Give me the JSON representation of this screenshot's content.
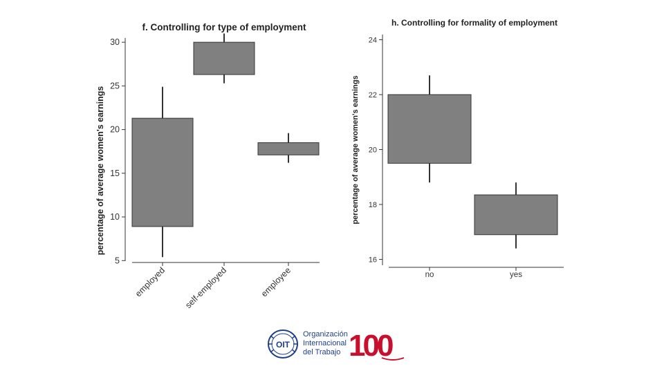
{
  "chart_data": [
    {
      "type": "boxplot",
      "title": "f. Controlling for type of employment",
      "xlabel": "",
      "ylabel": "percentage of average women's earnings",
      "ylim": [
        4.5,
        31
      ],
      "yticks": [
        5,
        10,
        15,
        20,
        25,
        30
      ],
      "ytick_labels": [
        "5",
        "10",
        "15",
        "20",
        "25",
        "30"
      ],
      "categories": [
        "employed",
        "self-employed",
        "employee"
      ],
      "boxes": [
        {
          "category": "employed",
          "whisker_low": 5.4,
          "q1": 8.9,
          "q3": 21.3,
          "whisker_high": 24.9
        },
        {
          "category": "self-employed",
          "whisker_low": 25.3,
          "q1": 26.3,
          "q3": 30.0,
          "whisker_high": 31.0
        },
        {
          "category": "employee",
          "whisker_low": 16.2,
          "q1": 17.1,
          "q3": 18.5,
          "whisker_high": 19.6
        }
      ],
      "box_color": "#808080",
      "grid": false
    },
    {
      "type": "boxplot",
      "title": "h. Controlling for formality of employment",
      "xlabel": "",
      "ylabel": "percentage of average women's earnings",
      "ylim": [
        15.8,
        24.2
      ],
      "yticks": [
        16,
        18,
        20,
        22,
        24
      ],
      "ytick_labels": [
        "16",
        "18",
        "20",
        "22",
        "24"
      ],
      "categories": [
        "no",
        "yes"
      ],
      "boxes": [
        {
          "category": "no",
          "whisker_low": 18.8,
          "q1": 19.5,
          "q3": 22.0,
          "whisker_high": 22.7
        },
        {
          "category": "yes",
          "whisker_low": 16.4,
          "q1": 16.9,
          "q3": 18.35,
          "whisker_high": 18.8
        }
      ],
      "box_color": "#808080",
      "grid": false
    }
  ],
  "logo": {
    "org_lines": [
      "Organización",
      "Internacional",
      "del Trabajo"
    ],
    "emblem_letters": "OIT",
    "centenary_mark": "100",
    "org_color": "#1e3f8a",
    "centenary_color": "#c8102e"
  }
}
